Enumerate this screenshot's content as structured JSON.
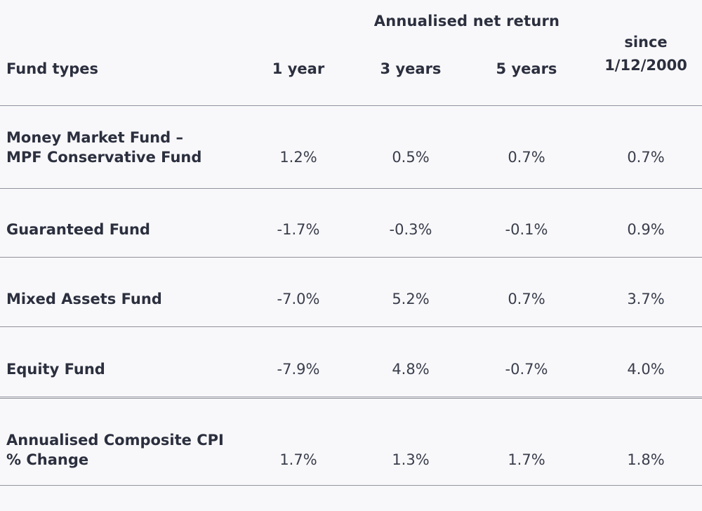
{
  "table": {
    "group_header": "Annualised net return",
    "columns": [
      "Fund types",
      "1 year",
      "3 years",
      "5 years",
      "since 1/12/2000"
    ],
    "since_line1": "since",
    "since_line2": "1/12/2000",
    "rows": [
      {
        "name_line1": "Money Market Fund –",
        "name_line2": "MPF Conservative Fund",
        "values": [
          "1.2%",
          "0.5%",
          "0.7%",
          "0.7%"
        ]
      },
      {
        "name_line1": "Guaranteed Fund",
        "name_line2": "",
        "values": [
          "-1.7%",
          "-0.3%",
          "-0.1%",
          "0.9%"
        ]
      },
      {
        "name_line1": "Mixed Assets Fund",
        "name_line2": "",
        "values": [
          "-7.0%",
          "5.2%",
          "0.7%",
          "3.7%"
        ]
      },
      {
        "name_line1": "Equity Fund",
        "name_line2": "",
        "values": [
          "-7.9%",
          "4.8%",
          "-0.7%",
          "4.0%"
        ]
      },
      {
        "name_line1": "Annualised Composite CPI",
        "name_line2": "% Change",
        "values": [
          "1.7%",
          "1.3%",
          "1.7%",
          "1.8%"
        ]
      }
    ]
  },
  "colors": {
    "background": "#f8f8fa",
    "text": "#2b2f3e",
    "rule": "#8f939c"
  }
}
